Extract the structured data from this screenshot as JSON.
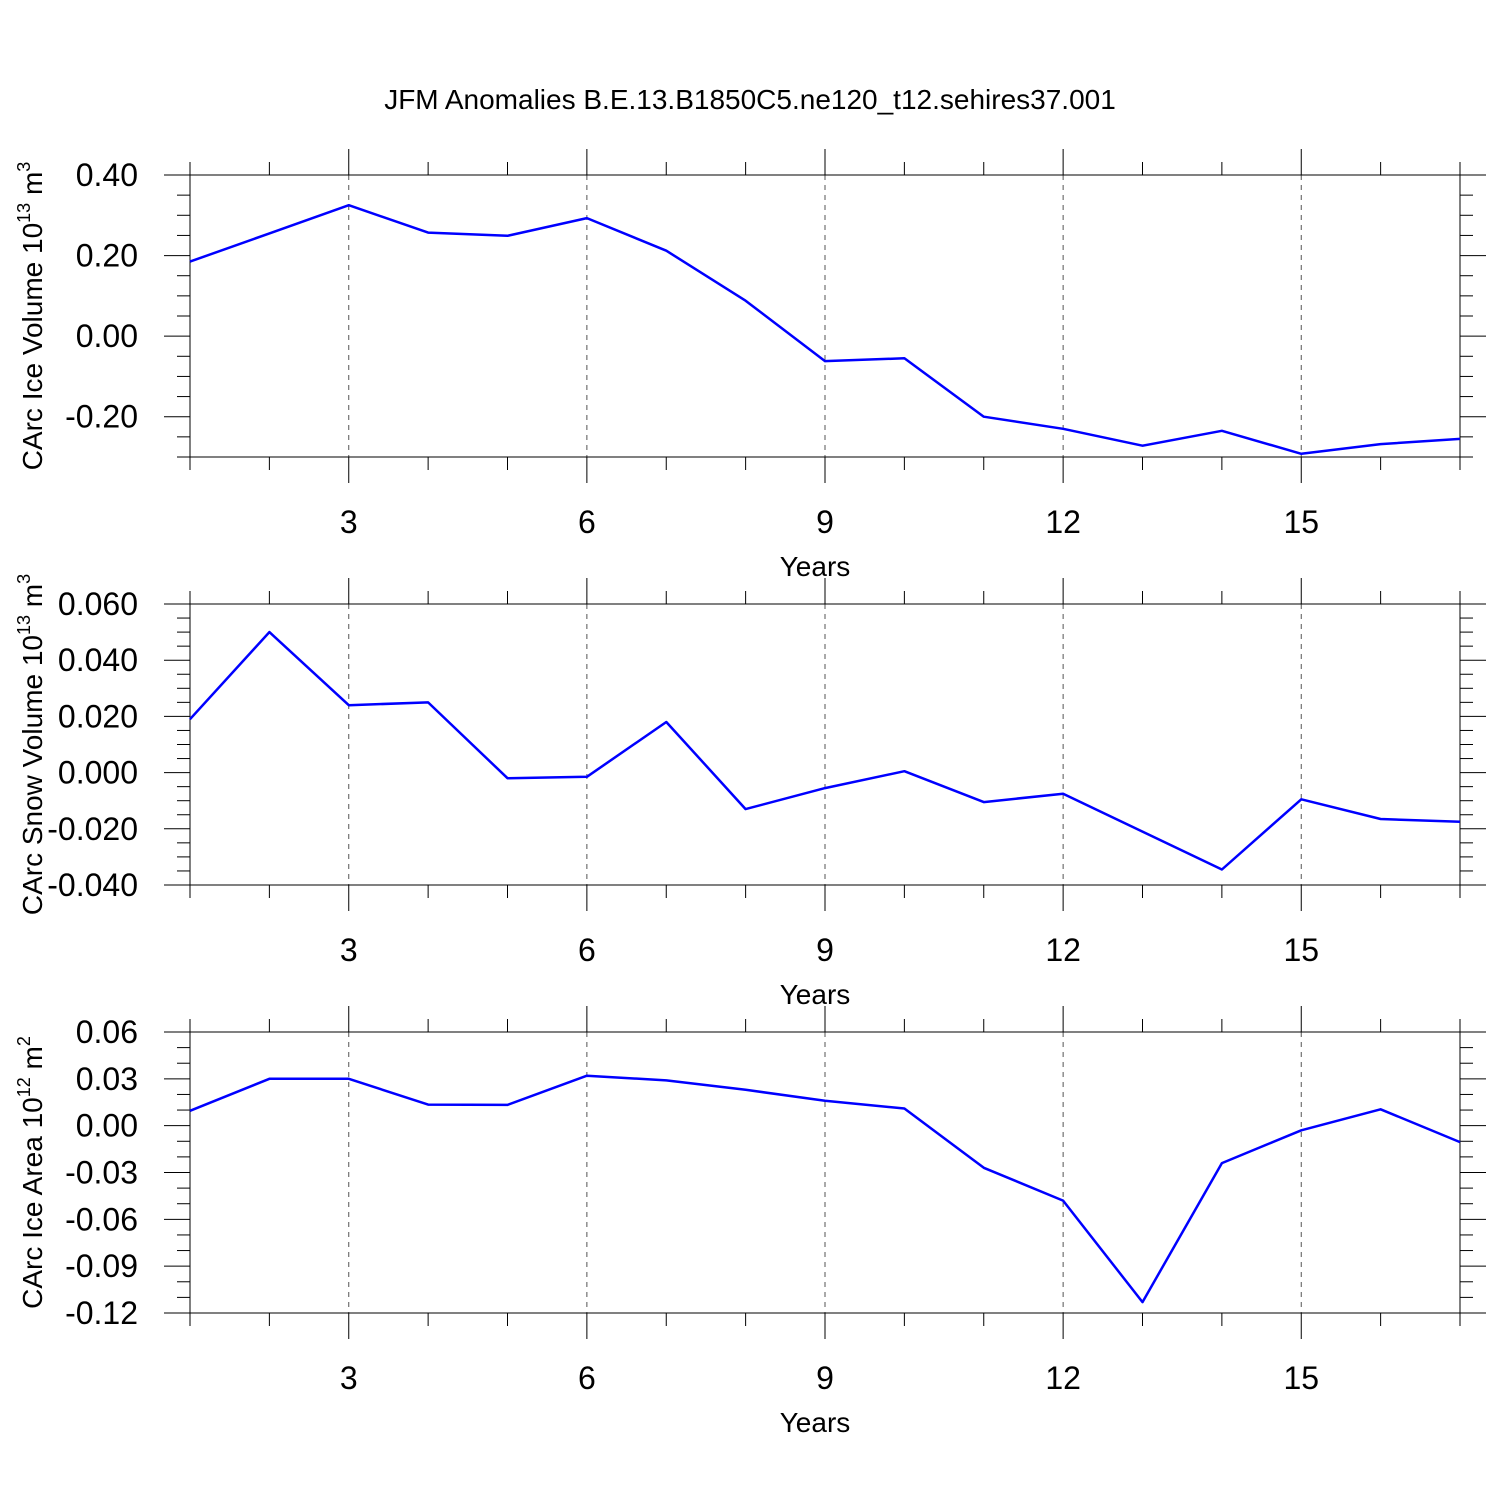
{
  "title": "JFM Anomalies B.E.13.B1850C5.ne120_t12.sehires37.001",
  "colors": {
    "line": "#0000ff",
    "axis": "#000000",
    "grid": "#555555"
  },
  "chart_data": [
    {
      "type": "line",
      "ylabel": "CArc Ice Volume 10",
      "ylabel_sup": "13",
      "ylabel_unit": " m",
      "ylabel_unit_sup": "3",
      "xlabel": "Years",
      "xlim": [
        1,
        17
      ],
      "ylim": [
        -0.3,
        0.4
      ],
      "yticks": [
        0.4,
        0.2,
        0.0,
        -0.2
      ],
      "ytick_labels": [
        "0.40",
        "0.20",
        "0.00",
        "-0.20"
      ],
      "yminor_step": 0.05,
      "xticks": [
        3,
        6,
        9,
        12,
        15
      ],
      "xtick_labels": [
        "3",
        "6",
        "9",
        "12",
        "15"
      ],
      "x": [
        1,
        2,
        3,
        4,
        5,
        6,
        7,
        8,
        9,
        10,
        11,
        12,
        13,
        14,
        15,
        16,
        17
      ],
      "series": [
        {
          "name": "CArc Ice Volume",
          "values": [
            0.185,
            0.255,
            0.325,
            0.257,
            0.249,
            0.293,
            0.212,
            0.088,
            -0.062,
            -0.055,
            -0.2,
            -0.23,
            -0.272,
            -0.235,
            -0.292,
            -0.268,
            -0.255
          ]
        }
      ]
    },
    {
      "type": "line",
      "ylabel": "CArc Snow Volume 10",
      "ylabel_sup": "13",
      "ylabel_unit": " m",
      "ylabel_unit_sup": "3",
      "xlabel": "Years",
      "xlim": [
        1,
        17
      ],
      "ylim": [
        -0.04,
        0.06
      ],
      "yticks": [
        0.06,
        0.04,
        0.02,
        0.0,
        -0.02,
        -0.04
      ],
      "ytick_labels": [
        "0.060",
        "0.040",
        "0.020",
        "0.000",
        "-0.020",
        "-0.040"
      ],
      "yminor_step": 0.005,
      "xticks": [
        3,
        6,
        9,
        12,
        15
      ],
      "xtick_labels": [
        "3",
        "6",
        "9",
        "12",
        "15"
      ],
      "x": [
        1,
        2,
        3,
        4,
        5,
        6,
        7,
        8,
        9,
        10,
        11,
        12,
        13,
        14,
        15,
        16,
        17
      ],
      "series": [
        {
          "name": "CArc Snow Volume",
          "values": [
            0.019,
            0.05,
            0.024,
            0.025,
            -0.002,
            -0.0015,
            0.018,
            -0.013,
            -0.0055,
            0.0005,
            -0.0105,
            -0.0075,
            -0.021,
            -0.0345,
            -0.0095,
            -0.0165,
            -0.0175
          ]
        }
      ]
    },
    {
      "type": "line",
      "ylabel": "CArc Ice Area 10",
      "ylabel_sup": "12",
      "ylabel_unit": " m",
      "ylabel_unit_sup": "2",
      "xlabel": "Years",
      "xlim": [
        1,
        17
      ],
      "ylim": [
        -0.12,
        0.06
      ],
      "yticks": [
        0.06,
        0.03,
        0.0,
        -0.03,
        -0.06,
        -0.09,
        -0.12
      ],
      "ytick_labels": [
        "0.06",
        "0.03",
        "0.00",
        "-0.03",
        "-0.06",
        "-0.09",
        "-0.12"
      ],
      "yminor_step": 0.01,
      "xticks": [
        3,
        6,
        9,
        12,
        15
      ],
      "xtick_labels": [
        "3",
        "6",
        "9",
        "12",
        "15"
      ],
      "x": [
        1,
        2,
        3,
        4,
        5,
        6,
        7,
        8,
        9,
        10,
        11,
        12,
        13,
        14,
        15,
        16,
        17
      ],
      "series": [
        {
          "name": "CArc Ice Area",
          "values": [
            0.0095,
            0.03,
            0.03,
            0.0135,
            0.0133,
            0.032,
            0.029,
            0.023,
            0.016,
            0.011,
            -0.027,
            -0.048,
            -0.113,
            -0.024,
            -0.003,
            0.0105,
            -0.0105
          ]
        }
      ]
    }
  ]
}
